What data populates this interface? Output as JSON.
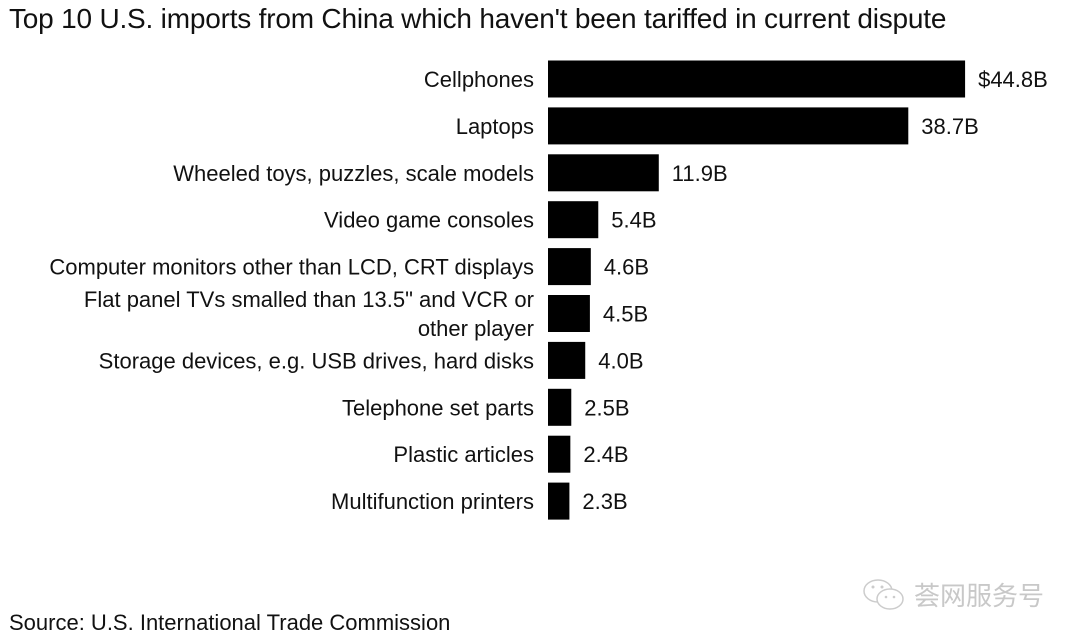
{
  "title": "Top 10 U.S. imports from China which haven't been tariffed in current dispute",
  "source": "Source: U.S. International Trade Commission",
  "watermark": {
    "text": "荟网服务号",
    "icon": "wechat-icon"
  },
  "chart_data": {
    "type": "bar",
    "orientation": "horizontal",
    "title": "Top 10 U.S. imports from China which haven't been tariffed in current dispute",
    "unit": "billion USD",
    "categories": [
      "Cellphones",
      "Laptops",
      "Wheeled toys, puzzles, scale models",
      "Video game consoles",
      "Computer monitors other than LCD, CRT displays",
      "Flat panel TVs smalled than 13.5\" and VCR or other player",
      "Storage devices, e.g. USB drives, hard disks",
      "Telephone set parts",
      "Plastic articles",
      "Multifunction printers"
    ],
    "values": [
      44.8,
      38.7,
      11.9,
      5.4,
      4.6,
      4.5,
      4.0,
      2.5,
      2.4,
      2.3
    ],
    "data_labels": [
      "$44.8B",
      "38.7B",
      "11.9B",
      "5.4B",
      "4.6B",
      "4.5B",
      "4.0B",
      "2.5B",
      "2.4B",
      "2.3B"
    ],
    "bar_color": "#000000",
    "grid": false,
    "legend": "none"
  }
}
